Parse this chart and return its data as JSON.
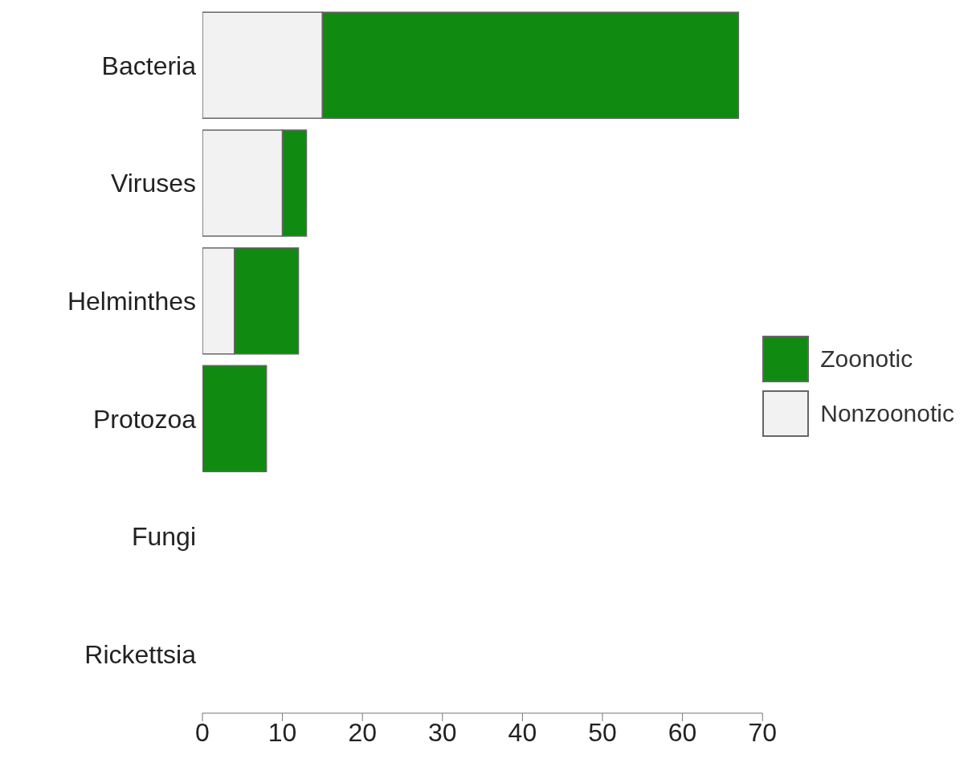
{
  "chart_data": {
    "type": "bar",
    "orientation": "horizontal",
    "stacked": true,
    "categories": [
      "Bacteria",
      "Viruses",
      "Helminthes",
      "Protozoa",
      "Fungi",
      "Rickettsia"
    ],
    "series": [
      {
        "name": "Nonzoonotic",
        "color": "#f2f2f2",
        "values": [
          15,
          10,
          4,
          0,
          0,
          0
        ]
      },
      {
        "name": "Zoonotic",
        "color": "#118a11",
        "values": [
          52,
          3,
          8,
          8,
          0,
          0
        ]
      }
    ],
    "xlim": [
      0,
      70
    ],
    "xticks": [
      0,
      10,
      20,
      30,
      40,
      50,
      60,
      70
    ],
    "grid": false,
    "legend": "right"
  }
}
